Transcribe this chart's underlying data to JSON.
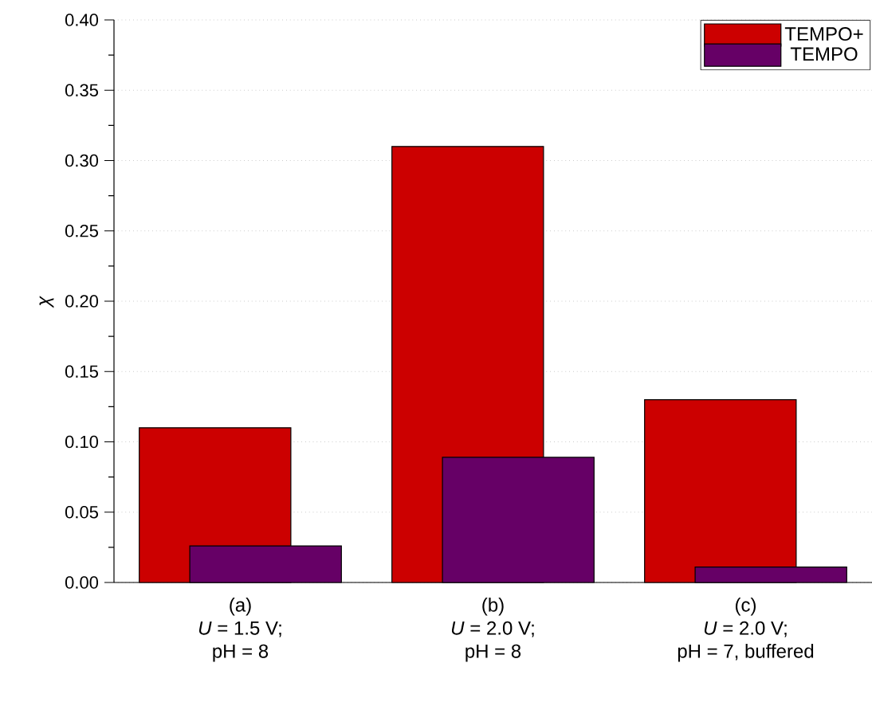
{
  "chart_data": {
    "type": "bar",
    "ylabel": "*χ*",
    "categories": [
      "(a)\n*U* = 1.5 V;\npH = 8",
      "(b)\n*U* = 2.0 V;\npH = 8",
      "(c)\n*U* = 2.0 V;\npH = 7, buffered"
    ],
    "series": [
      {
        "name": "TEMPO+",
        "color": "#cc0000",
        "values": [
          0.11,
          0.31,
          0.13
        ]
      },
      {
        "name": "TEMPO",
        "color": "#660066",
        "values": [
          0.026,
          0.089,
          0.011
        ]
      }
    ],
    "ylim": [
      0,
      0.4
    ],
    "yticks": [
      {
        "value": 0,
        "label": "0.00"
      },
      {
        "value": 0.05,
        "label": "0.05"
      },
      {
        "value": 0.1,
        "label": "0.10"
      },
      {
        "value": 0.15,
        "label": "0.15"
      },
      {
        "value": 0.2,
        "label": "0.20"
      },
      {
        "value": 0.25,
        "label": "0.25"
      },
      {
        "value": 0.3,
        "label": "0.30"
      },
      {
        "value": 0.35,
        "label": "0.35"
      },
      {
        "value": 0.4,
        "label": "0.40"
      }
    ],
    "grid": "y",
    "legend": "top right"
  }
}
